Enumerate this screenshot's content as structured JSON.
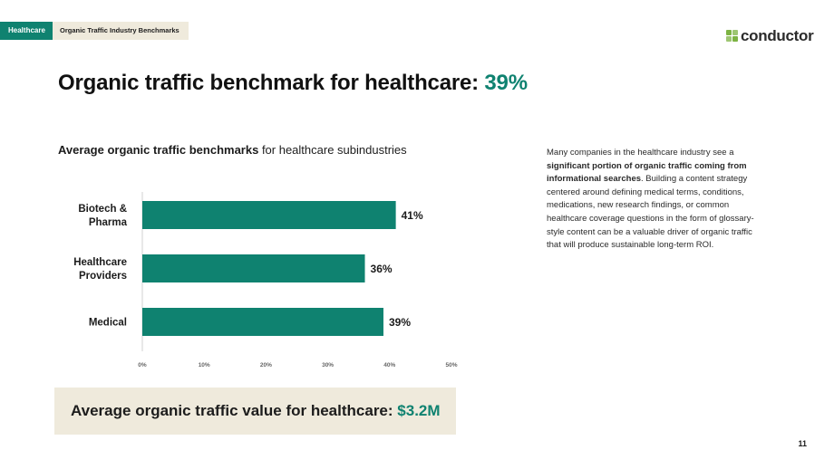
{
  "header": {
    "tag_primary": "Healthcare",
    "tag_secondary": "Organic Traffic Industry Benchmarks",
    "logo_text": "conductor",
    "logo_icon": "conductor-logo-icon"
  },
  "title": {
    "text": "Organic traffic benchmark for healthcare:",
    "value": "39%"
  },
  "chart_heading": {
    "bold": "Average organic traffic benchmarks",
    "rest": " for healthcare subindustries"
  },
  "description": {
    "part1": "Many companies in the healthcare industry see a ",
    "bold": "significant portion of organic traffic coming from informational searches",
    "part2": ". Building a content strategy centered around defining medical terms, conditions, medications, new research findings, or common healthcare coverage questions in the form of glossary-style content can be a valuable driver of organic traffic that will produce sustainable long-term ROI."
  },
  "value_box": {
    "label": "Average organic traffic value for healthcare:",
    "value": "$3.2M"
  },
  "page_number": "11",
  "colors": {
    "accent": "#0f8270",
    "bar": "#0f8270",
    "beige": "#efeadc",
    "logo_green": "#7db343"
  },
  "chart_data": {
    "type": "bar",
    "orientation": "horizontal",
    "categories": [
      [
        "Biotech &",
        "Pharma"
      ],
      [
        "Healthcare",
        "Providers"
      ],
      [
        "Medical"
      ]
    ],
    "values": [
      41,
      36,
      39
    ],
    "data_labels": [
      "41%",
      "36%",
      "39%"
    ],
    "xticks": [
      "0%",
      "10%",
      "20%",
      "30%",
      "40%",
      "50%"
    ],
    "xlim": [
      0,
      50
    ],
    "grid": false
  }
}
